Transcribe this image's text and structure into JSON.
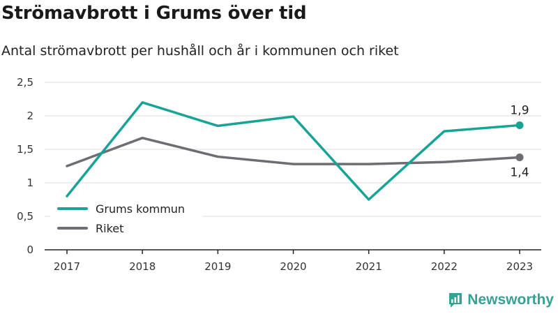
{
  "header": {
    "title": "Strömavbrott i Grums över tid",
    "subtitle": "Antal strömavbrott per hushåll och år i kommunen och riket"
  },
  "brand": {
    "name": "Newsworthy",
    "color": "#34a294"
  },
  "chart_data": {
    "type": "line",
    "title": "Strömavbrott i Grums över tid",
    "subtitle": "Antal strömavbrott per hushåll och år i kommunen och riket",
    "xlabel": "",
    "ylabel": "",
    "categories": [
      "2017",
      "2018",
      "2019",
      "2020",
      "2021",
      "2022",
      "2023"
    ],
    "ylim": [
      0,
      2.5
    ],
    "yticks": [
      0,
      0.5,
      1,
      1.5,
      2,
      2.5
    ],
    "ytick_labels": [
      "0",
      "0,5",
      "1",
      "1,5",
      "2",
      "2,5"
    ],
    "grid": true,
    "legend_position": "bottom-left",
    "series": [
      {
        "name": "Grums kommun",
        "color": "#17a395",
        "values": [
          0.8,
          2.2,
          1.85,
          1.99,
          0.75,
          1.77,
          1.86
        ],
        "end_label": "1,9"
      },
      {
        "name": "Riket",
        "color": "#6e6d73",
        "values": [
          1.25,
          1.67,
          1.39,
          1.28,
          1.28,
          1.31,
          1.38
        ],
        "end_label": "1,4"
      }
    ]
  }
}
